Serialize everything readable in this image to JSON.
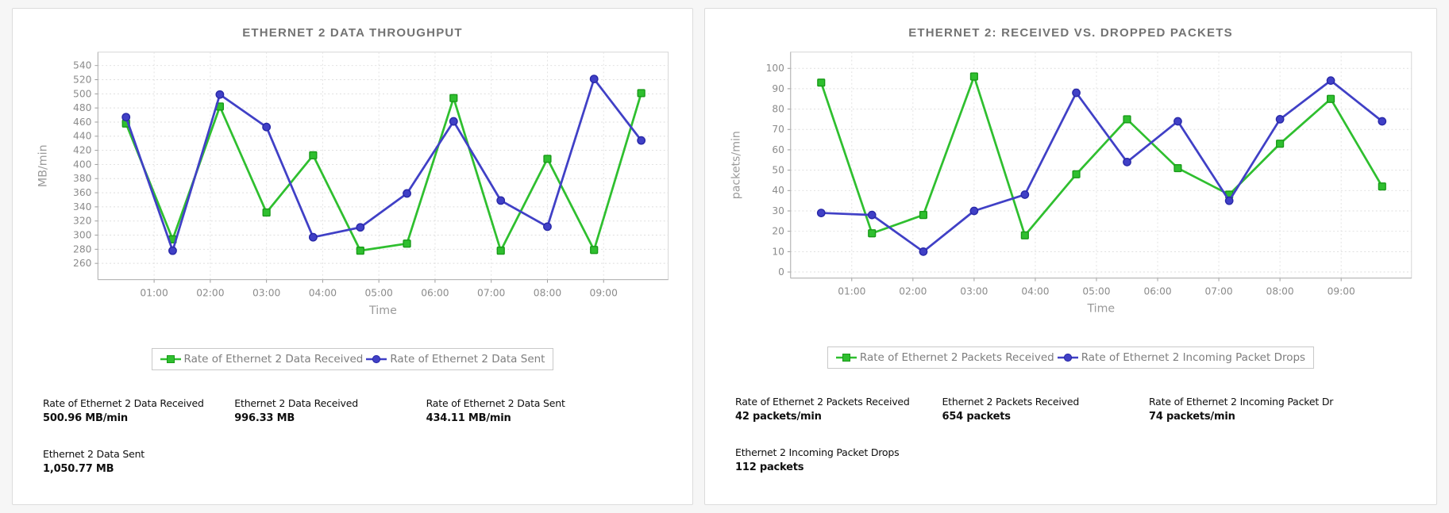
{
  "page": {
    "background_color": "#f6f6f6",
    "accent_green": "#2fbf2f",
    "accent_blue": "#4040c6"
  },
  "panels": [
    {
      "title": "ETHERNET 2 DATA THROUGHPUT",
      "stats": [
        {
          "label": "Rate of Ethernet 2 Data Received",
          "value": "500.96 MB/min"
        },
        {
          "label": "Ethernet 2 Data Received",
          "value": "996.33 MB"
        },
        {
          "label": "Rate of Ethernet 2 Data Sent",
          "value": "434.11 MB/min"
        },
        {
          "label": "Ethernet 2 Data Sent",
          "value": "1,050.77 MB"
        }
      ]
    },
    {
      "title": "ETHERNET 2: RECEIVED VS. DROPPED PACKETS",
      "stats": [
        {
          "label": "Rate of Ethernet 2 Packets Received",
          "value": "42 packets/min"
        },
        {
          "label": "Ethernet 2 Packets Received",
          "value": "654 packets"
        },
        {
          "label": "Rate of Ethernet 2 Incoming Packet Dr",
          "value": "74 packets/min"
        },
        {
          "label": "Ethernet 2 Incoming Packet Drops",
          "value": "112 packets"
        }
      ]
    }
  ],
  "chart_data": [
    {
      "type": "line",
      "title": "ETHERNET 2 DATA THROUGHPUT",
      "xlabel": "Time",
      "ylabel": "MB/min",
      "x": [
        0.5,
        1.33,
        2.17,
        3,
        3.83,
        4.67,
        5.5,
        6.33,
        7.17,
        8,
        8.83,
        9.67
      ],
      "x_tick_hours": [
        1,
        2,
        3,
        4,
        5,
        6,
        7,
        8,
        9
      ],
      "x_tick_labels": [
        "01:00",
        "02:00",
        "03:00",
        "04:00",
        "05:00",
        "06:00",
        "07:00",
        "08:00",
        "09:00"
      ],
      "xlim": [
        0,
        10.15
      ],
      "yticks": [
        260,
        280,
        300,
        320,
        340,
        360,
        380,
        400,
        420,
        440,
        460,
        480,
        500,
        520,
        540
      ],
      "ylim": [
        237,
        559
      ],
      "grid": true,
      "legend_position": "bottom",
      "series": [
        {
          "name": "Rate of Ethernet 2 Data Received",
          "color": "#2fbf2f",
          "edge": "#189a18",
          "marker": "square",
          "values": [
            458,
            294,
            482,
            332,
            413,
            278,
            288,
            494,
            278,
            408,
            279,
            501
          ]
        },
        {
          "name": "Rate of Ethernet 2 Data Sent",
          "color": "#4040c6",
          "edge": "#2828a8",
          "marker": "circle",
          "values": [
            467,
            278,
            499,
            453,
            297,
            311,
            359,
            461,
            349,
            312,
            521,
            434
          ]
        }
      ]
    },
    {
      "type": "line",
      "title": "ETHERNET 2: RECEIVED VS. DROPPED PACKETS",
      "xlabel": "Time",
      "ylabel": "packets/min",
      "x": [
        0.5,
        1.33,
        2.17,
        3,
        3.83,
        4.67,
        5.5,
        6.33,
        7.17,
        8,
        8.83,
        9.67
      ],
      "x_tick_hours": [
        1,
        2,
        3,
        4,
        5,
        6,
        7,
        8,
        9
      ],
      "x_tick_labels": [
        "01:00",
        "02:00",
        "03:00",
        "04:00",
        "05:00",
        "06:00",
        "07:00",
        "08:00",
        "09:00"
      ],
      "xlim": [
        0,
        10.15
      ],
      "yticks": [
        0,
        10,
        20,
        30,
        40,
        50,
        60,
        70,
        80,
        90,
        100
      ],
      "ylim": [
        -3,
        108
      ],
      "grid": true,
      "legend_position": "bottom",
      "series": [
        {
          "name": "Rate of Ethernet 2 Packets Received",
          "color": "#2fbf2f",
          "edge": "#189a18",
          "marker": "square",
          "values": [
            93,
            19,
            28,
            96,
            18,
            48,
            75,
            51,
            38,
            63,
            85,
            42
          ]
        },
        {
          "name": "Rate of Ethernet 2 Incoming Packet Drops",
          "color": "#4040c6",
          "edge": "#2828a8",
          "marker": "circle",
          "values": [
            29,
            28,
            10,
            30,
            38,
            88,
            54,
            74,
            35,
            75,
            94,
            74
          ]
        }
      ]
    }
  ]
}
